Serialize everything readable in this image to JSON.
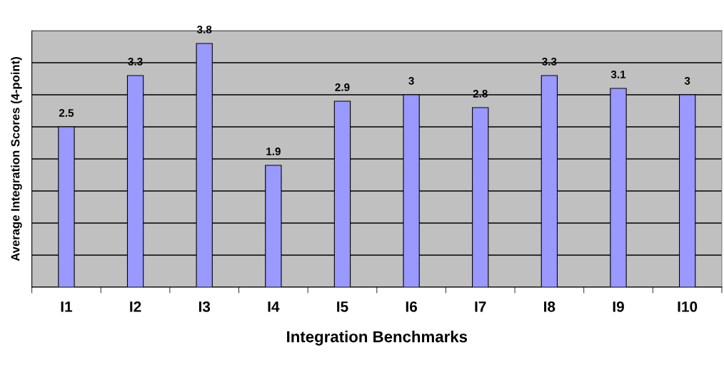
{
  "chart_data": {
    "type": "bar",
    "xlabel": "Integration Benchmarks",
    "ylabel": "Average Integration Scores (4-point)",
    "categories": [
      "I1",
      "I2",
      "I3",
      "I4",
      "I5",
      "I6",
      "I7",
      "I8",
      "I9",
      "I10"
    ],
    "values": [
      2.5,
      3.3,
      3.8,
      1.9,
      2.9,
      3,
      2.8,
      3.3,
      3.1,
      3
    ],
    "color": "#9999ff",
    "data_labels": true,
    "ylim": [
      0,
      4
    ],
    "yticks": [
      {
        "value": 0,
        "label": null
      },
      {
        "value": 0.5,
        "label": null
      },
      {
        "value": 1,
        "label": null
      },
      {
        "value": 1.5,
        "label": null
      },
      {
        "value": 2,
        "label": null
      },
      {
        "value": 2.5,
        "label": null
      },
      {
        "value": 3,
        "label": null
      },
      {
        "value": 3.5,
        "label": null
      },
      {
        "value": 4,
        "label": null
      }
    ],
    "grid": "y",
    "tick_labels": "x"
  }
}
